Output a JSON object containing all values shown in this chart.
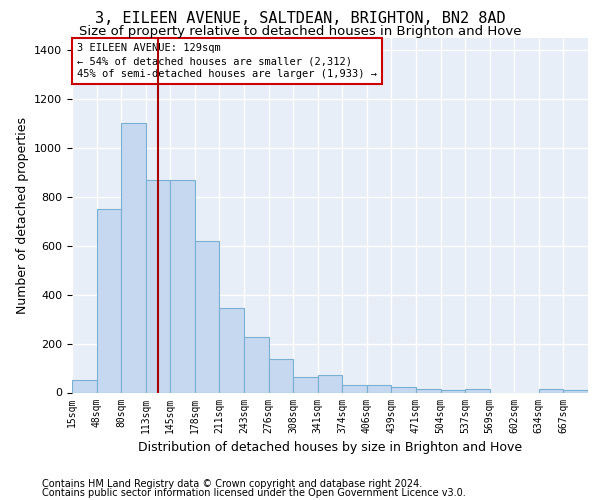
{
  "title": "3, EILEEN AVENUE, SALTDEAN, BRIGHTON, BN2 8AD",
  "subtitle": "Size of property relative to detached houses in Brighton and Hove",
  "xlabel": "Distribution of detached houses by size in Brighton and Hove",
  "ylabel": "Number of detached properties",
  "footnote1": "Contains HM Land Registry data © Crown copyright and database right 2024.",
  "footnote2": "Contains public sector information licensed under the Open Government Licence v3.0.",
  "annotation_line1": "3 EILEEN AVENUE: 129sqm",
  "annotation_line2": "← 54% of detached houses are smaller (2,312)",
  "annotation_line3": "45% of semi-detached houses are larger (1,933) →",
  "bar_color": "#c5d8f0",
  "bar_edge_color": "#7aafd4",
  "vline_color": "#aa0000",
  "vline_x": 129,
  "categories": [
    "15sqm",
    "48sqm",
    "80sqm",
    "113sqm",
    "145sqm",
    "178sqm",
    "211sqm",
    "243sqm",
    "276sqm",
    "308sqm",
    "341sqm",
    "374sqm",
    "406sqm",
    "439sqm",
    "471sqm",
    "504sqm",
    "537sqm",
    "569sqm",
    "602sqm",
    "634sqm",
    "667sqm"
  ],
  "bin_edges": [
    15,
    48,
    80,
    113,
    145,
    178,
    211,
    243,
    276,
    308,
    341,
    374,
    406,
    439,
    471,
    504,
    537,
    569,
    602,
    634,
    667,
    700
  ],
  "bar_heights": [
    50,
    750,
    1100,
    870,
    870,
    620,
    345,
    225,
    135,
    65,
    70,
    30,
    30,
    22,
    15,
    10,
    15,
    0,
    0,
    15,
    10
  ],
  "ylim": [
    0,
    1450
  ],
  "yticks": [
    0,
    200,
    400,
    600,
    800,
    1000,
    1200,
    1400
  ],
  "plot_bg_color": "#e8eef7",
  "grid_color": "#ffffff",
  "annotation_box_facecolor": "#ffffff",
  "annotation_border_color": "#cc0000",
  "title_fontsize": 11,
  "subtitle_fontsize": 9.5,
  "axis_label_fontsize": 9,
  "tick_label_fontsize": 7,
  "annotation_fontsize": 7.5,
  "footnote_fontsize": 7
}
